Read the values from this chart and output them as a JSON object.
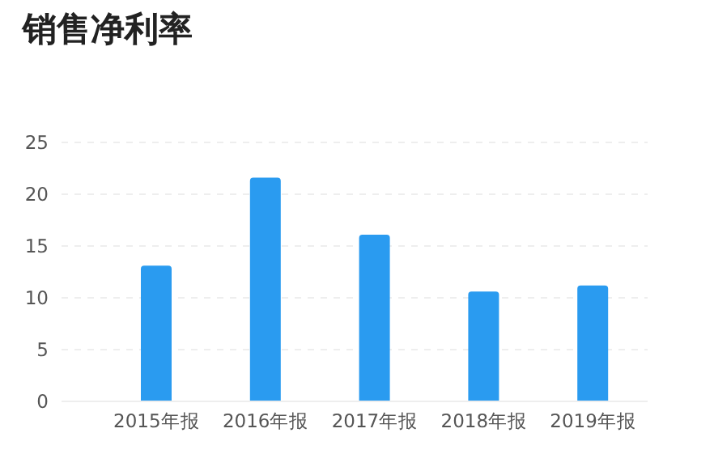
{
  "chart_data": {
    "type": "bar",
    "title": "销售净利率",
    "categories": [
      "2015年报",
      "2016年报",
      "2017年报",
      "2018年报",
      "2019年报"
    ],
    "values": [
      13.1,
      21.6,
      16.1,
      10.6,
      11.2
    ],
    "color": "#2a9bf0",
    "ylim": [
      0,
      25
    ],
    "yticks": [
      0,
      5,
      10,
      15,
      20,
      25
    ],
    "grid": "y"
  }
}
